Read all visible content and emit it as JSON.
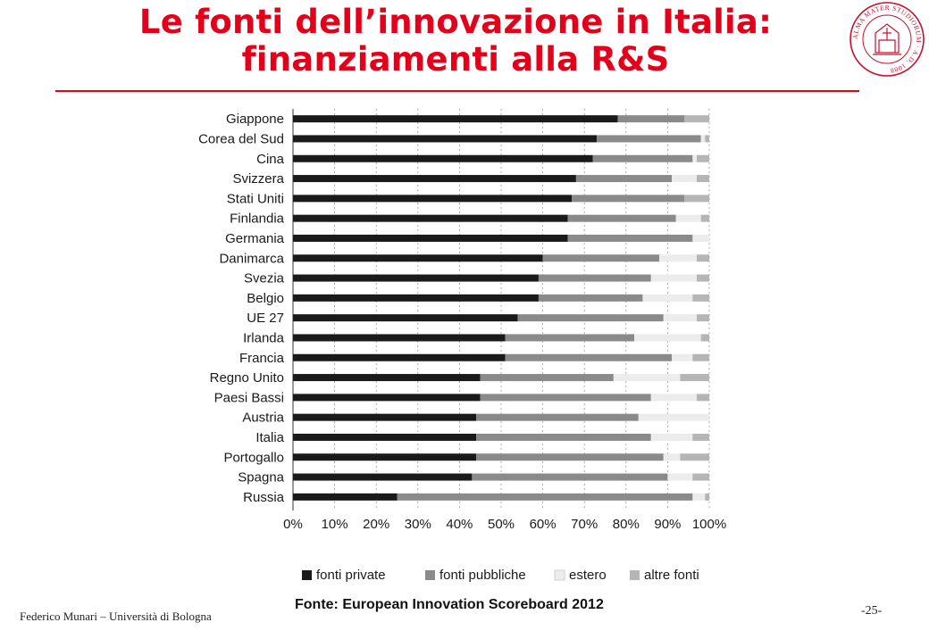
{
  "slide": {
    "title_line1": "Le fonti dell’innovazione in Italia:",
    "title_line2": "finanziamenti alla R&S",
    "source": "Fonte: European Innovation Scoreboard 2012",
    "footer_left": "Federico Munari – Università di Bologna",
    "page_number": "-25-"
  },
  "seal": {
    "text": "ALMA MATER STUDIORUM · A.D. 1088",
    "color": "#c8102e"
  },
  "colors": {
    "title": "#e3001b",
    "fonti_private": "#1a1a1a",
    "fonti_pubbliche": "#8a8a8a",
    "estero": "#ececec",
    "altre_fonti": "#b5b5b5"
  },
  "chart_data": {
    "type": "bar",
    "orientation": "horizontal",
    "stacked": true,
    "categories": [
      "Giappone",
      "Corea del Sud",
      "Cina",
      "Svizzera",
      "Stati Uniti",
      "Finlandia",
      "Germania",
      "Danimarca",
      "Svezia",
      "Belgio",
      "UE 27",
      "Irlanda",
      "Francia",
      "Regno Unito",
      "Paesi Bassi",
      "Austria",
      "Italia",
      "Portogallo",
      "Spagna",
      "Russia"
    ],
    "series": [
      {
        "name": "fonti private",
        "color": "#1a1a1a",
        "values": [
          78,
          73,
          72,
          68,
          67,
          66,
          66,
          60,
          59,
          59,
          54,
          51,
          51,
          45,
          45,
          44,
          44,
          44,
          43,
          25
        ]
      },
      {
        "name": "fonti pubbliche",
        "color": "#8a8a8a",
        "values": [
          16,
          25,
          24,
          23,
          27,
          26,
          30,
          28,
          27,
          25,
          35,
          31,
          40,
          32,
          41,
          39,
          42,
          45,
          47,
          71
        ]
      },
      {
        "name": "estero",
        "color": "#ececec",
        "values": [
          0,
          1,
          1,
          6,
          0,
          6,
          4,
          9,
          11,
          12,
          8,
          16,
          5,
          16,
          11,
          17,
          10,
          4,
          6,
          3
        ]
      },
      {
        "name": "altre fonti",
        "color": "#b5b5b5",
        "values": [
          6,
          1,
          3,
          3,
          6,
          2,
          0,
          3,
          3,
          4,
          3,
          2,
          4,
          7,
          3,
          0,
          4,
          7,
          4,
          1
        ]
      }
    ],
    "xlim": [
      0,
      100
    ],
    "x_ticks": [
      "0%",
      "10%",
      "20%",
      "30%",
      "40%",
      "50%",
      "60%",
      "70%",
      "80%",
      "90%",
      "100%"
    ],
    "grid": "vertical dashed",
    "legend_position": "bottom"
  }
}
